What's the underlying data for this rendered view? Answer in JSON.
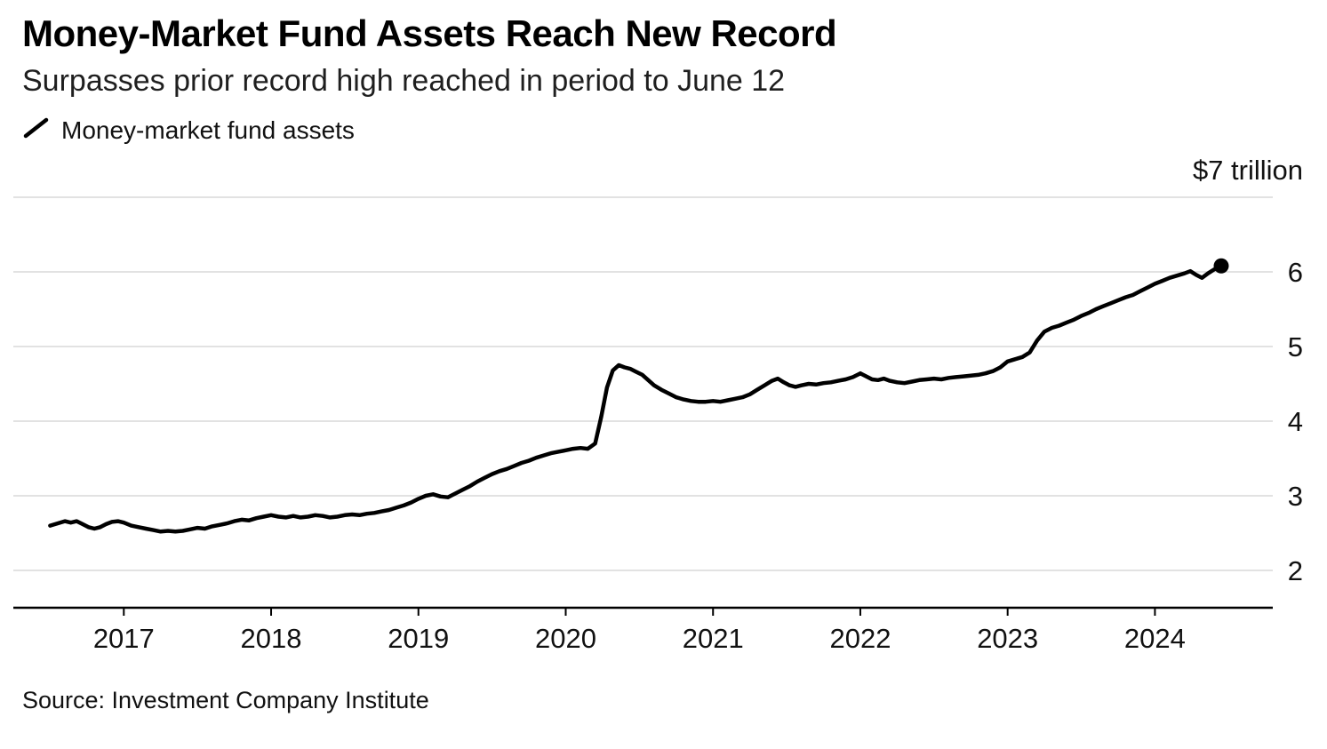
{
  "header": {
    "title": "Money-Market Fund Assets Reach New Record",
    "subtitle": "Surpasses prior record high reached in period to June 12"
  },
  "legend": {
    "label": "Money-market fund assets"
  },
  "footer": {
    "source": "Source: Investment Company Institute"
  },
  "colors": {
    "line": "#000000",
    "grid": "#d9d9d9",
    "axis": "#000000",
    "tick_text": "#111111"
  },
  "chart_data": {
    "type": "line",
    "title": "Money-Market Fund Assets Reach New Record",
    "subtitle": "Surpasses prior record high reached in period to June 12",
    "unit_top_label": "$7 trillion",
    "legend_entries": [
      "Money-market fund assets"
    ],
    "source": "Source: Investment Company Institute",
    "x_range": [
      2016.25,
      2024.8
    ],
    "y_range": [
      1.5,
      7.0
    ],
    "x_tick_values": [
      2017,
      2018,
      2019,
      2020,
      2021,
      2022,
      2023,
      2024
    ],
    "x_tick_labels": [
      "2017",
      "2018",
      "2019",
      "2020",
      "2021",
      "2022",
      "2023",
      "2024"
    ],
    "y_gridline_values": [
      7,
      6,
      5,
      4,
      3,
      2
    ],
    "y_tick_values": [
      6,
      5,
      4,
      3,
      2
    ],
    "y_tick_labels": [
      "6",
      "5",
      "4",
      "3",
      "2"
    ],
    "grid": true,
    "legend_position": "top-left",
    "series": [
      {
        "name": "Money-market fund assets",
        "color": "#000000",
        "end_dot": true,
        "units": "trillion USD",
        "points": [
          [
            2016.5,
            2.6
          ],
          [
            2016.55,
            2.63
          ],
          [
            2016.6,
            2.66
          ],
          [
            2016.64,
            2.64
          ],
          [
            2016.68,
            2.66
          ],
          [
            2016.72,
            2.62
          ],
          [
            2016.76,
            2.58
          ],
          [
            2016.8,
            2.56
          ],
          [
            2016.84,
            2.58
          ],
          [
            2016.88,
            2.62
          ],
          [
            2016.92,
            2.65
          ],
          [
            2016.96,
            2.66
          ],
          [
            2017.0,
            2.64
          ],
          [
            2017.05,
            2.6
          ],
          [
            2017.1,
            2.58
          ],
          [
            2017.15,
            2.56
          ],
          [
            2017.2,
            2.54
          ],
          [
            2017.25,
            2.52
          ],
          [
            2017.3,
            2.53
          ],
          [
            2017.35,
            2.52
          ],
          [
            2017.4,
            2.53
          ],
          [
            2017.45,
            2.55
          ],
          [
            2017.5,
            2.57
          ],
          [
            2017.55,
            2.56
          ],
          [
            2017.6,
            2.59
          ],
          [
            2017.65,
            2.61
          ],
          [
            2017.7,
            2.63
          ],
          [
            2017.75,
            2.66
          ],
          [
            2017.8,
            2.68
          ],
          [
            2017.85,
            2.67
          ],
          [
            2017.9,
            2.7
          ],
          [
            2017.95,
            2.72
          ],
          [
            2018.0,
            2.74
          ],
          [
            2018.05,
            2.72
          ],
          [
            2018.1,
            2.71
          ],
          [
            2018.15,
            2.73
          ],
          [
            2018.2,
            2.71
          ],
          [
            2018.25,
            2.72
          ],
          [
            2018.3,
            2.74
          ],
          [
            2018.35,
            2.73
          ],
          [
            2018.4,
            2.71
          ],
          [
            2018.45,
            2.72
          ],
          [
            2018.5,
            2.74
          ],
          [
            2018.55,
            2.75
          ],
          [
            2018.6,
            2.74
          ],
          [
            2018.65,
            2.76
          ],
          [
            2018.7,
            2.77
          ],
          [
            2018.75,
            2.79
          ],
          [
            2018.8,
            2.81
          ],
          [
            2018.85,
            2.84
          ],
          [
            2018.9,
            2.87
          ],
          [
            2018.95,
            2.91
          ],
          [
            2019.0,
            2.96
          ],
          [
            2019.05,
            3.0
          ],
          [
            2019.1,
            3.02
          ],
          [
            2019.15,
            2.99
          ],
          [
            2019.2,
            2.98
          ],
          [
            2019.25,
            3.03
          ],
          [
            2019.3,
            3.08
          ],
          [
            2019.35,
            3.13
          ],
          [
            2019.4,
            3.19
          ],
          [
            2019.45,
            3.24
          ],
          [
            2019.5,
            3.29
          ],
          [
            2019.55,
            3.33
          ],
          [
            2019.6,
            3.36
          ],
          [
            2019.65,
            3.4
          ],
          [
            2019.7,
            3.44
          ],
          [
            2019.75,
            3.47
          ],
          [
            2019.8,
            3.51
          ],
          [
            2019.85,
            3.54
          ],
          [
            2019.9,
            3.57
          ],
          [
            2019.95,
            3.59
          ],
          [
            2020.0,
            3.61
          ],
          [
            2020.05,
            3.63
          ],
          [
            2020.1,
            3.64
          ],
          [
            2020.15,
            3.63
          ],
          [
            2020.2,
            3.7
          ],
          [
            2020.24,
            4.05
          ],
          [
            2020.28,
            4.45
          ],
          [
            2020.32,
            4.68
          ],
          [
            2020.36,
            4.75
          ],
          [
            2020.4,
            4.72
          ],
          [
            2020.44,
            4.7
          ],
          [
            2020.48,
            4.66
          ],
          [
            2020.52,
            4.62
          ],
          [
            2020.56,
            4.55
          ],
          [
            2020.6,
            4.48
          ],
          [
            2020.65,
            4.42
          ],
          [
            2020.7,
            4.37
          ],
          [
            2020.75,
            4.32
          ],
          [
            2020.8,
            4.29
          ],
          [
            2020.85,
            4.27
          ],
          [
            2020.9,
            4.26
          ],
          [
            2020.95,
            4.26
          ],
          [
            2021.0,
            4.27
          ],
          [
            2021.05,
            4.26
          ],
          [
            2021.1,
            4.28
          ],
          [
            2021.15,
            4.3
          ],
          [
            2021.2,
            4.32
          ],
          [
            2021.25,
            4.36
          ],
          [
            2021.3,
            4.42
          ],
          [
            2021.35,
            4.48
          ],
          [
            2021.4,
            4.54
          ],
          [
            2021.44,
            4.57
          ],
          [
            2021.48,
            4.52
          ],
          [
            2021.52,
            4.48
          ],
          [
            2021.56,
            4.46
          ],
          [
            2021.6,
            4.48
          ],
          [
            2021.65,
            4.5
          ],
          [
            2021.7,
            4.49
          ],
          [
            2021.75,
            4.51
          ],
          [
            2021.8,
            4.52
          ],
          [
            2021.85,
            4.54
          ],
          [
            2021.9,
            4.56
          ],
          [
            2021.95,
            4.59
          ],
          [
            2022.0,
            4.64
          ],
          [
            2022.04,
            4.6
          ],
          [
            2022.08,
            4.56
          ],
          [
            2022.12,
            4.55
          ],
          [
            2022.16,
            4.57
          ],
          [
            2022.2,
            4.54
          ],
          [
            2022.25,
            4.52
          ],
          [
            2022.3,
            4.51
          ],
          [
            2022.35,
            4.53
          ],
          [
            2022.4,
            4.55
          ],
          [
            2022.45,
            4.56
          ],
          [
            2022.5,
            4.57
          ],
          [
            2022.55,
            4.56
          ],
          [
            2022.6,
            4.58
          ],
          [
            2022.65,
            4.59
          ],
          [
            2022.7,
            4.6
          ],
          [
            2022.75,
            4.61
          ],
          [
            2022.8,
            4.62
          ],
          [
            2022.85,
            4.64
          ],
          [
            2022.9,
            4.67
          ],
          [
            2022.95,
            4.72
          ],
          [
            2023.0,
            4.8
          ],
          [
            2023.05,
            4.83
          ],
          [
            2023.1,
            4.86
          ],
          [
            2023.15,
            4.92
          ],
          [
            2023.2,
            5.08
          ],
          [
            2023.25,
            5.2
          ],
          [
            2023.3,
            5.25
          ],
          [
            2023.35,
            5.28
          ],
          [
            2023.4,
            5.32
          ],
          [
            2023.45,
            5.36
          ],
          [
            2023.5,
            5.41
          ],
          [
            2023.55,
            5.45
          ],
          [
            2023.6,
            5.5
          ],
          [
            2023.65,
            5.54
          ],
          [
            2023.7,
            5.58
          ],
          [
            2023.75,
            5.62
          ],
          [
            2023.8,
            5.66
          ],
          [
            2023.85,
            5.69
          ],
          [
            2023.9,
            5.74
          ],
          [
            2023.95,
            5.79
          ],
          [
            2024.0,
            5.84
          ],
          [
            2024.05,
            5.88
          ],
          [
            2024.1,
            5.92
          ],
          [
            2024.15,
            5.95
          ],
          [
            2024.2,
            5.98
          ],
          [
            2024.24,
            6.01
          ],
          [
            2024.28,
            5.96
          ],
          [
            2024.32,
            5.92
          ],
          [
            2024.36,
            5.98
          ],
          [
            2024.4,
            6.03
          ],
          [
            2024.45,
            6.08
          ]
        ]
      }
    ]
  }
}
